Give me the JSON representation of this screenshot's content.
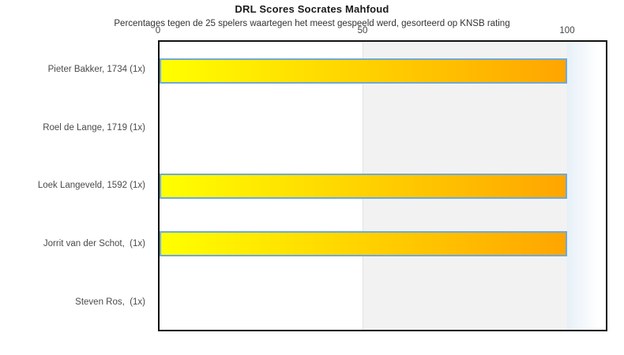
{
  "title": "DRL Scores Socrates Mahfoud",
  "subtitle": "Percentages tegen de 25 spelers waartegen het meest gespeeld werd, gesorteerd op KNSB rating",
  "axis": {
    "tick_labels": [
      "0",
      "50",
      "100"
    ]
  },
  "chart_data": {
    "type": "bar",
    "orientation": "horizontal",
    "title": "DRL Scores Socrates Mahfoud",
    "subtitle": "Percentages tegen de 25 spelers waartegen het meest gespeeld werd, gesorteerd op KNSB rating",
    "categories": [
      "Pieter Bakker, 1734 (1x)",
      "Roel de Lange, 1719 (1x)",
      "Loek Langeveld, 1592 (1x)",
      "Jorrit van der Schot,  (1x)",
      "Steven Ros,  (1x)"
    ],
    "values": [
      100,
      0,
      100,
      100,
      0
    ],
    "xlabel": "",
    "ylabel": "",
    "xlim": [
      0,
      110
    ],
    "x_ticks": [
      0,
      50,
      100
    ],
    "grid": false,
    "legend_position": "none",
    "shaded_band_x": [
      50,
      100
    ],
    "bar_gradient": [
      "#ffff00",
      "#ffa500"
    ],
    "bar_border_color": "#70a9d9",
    "band_color": "#f2f2f2",
    "over_100_gradient": [
      "#e7f0f8",
      "#ffffff"
    ]
  }
}
